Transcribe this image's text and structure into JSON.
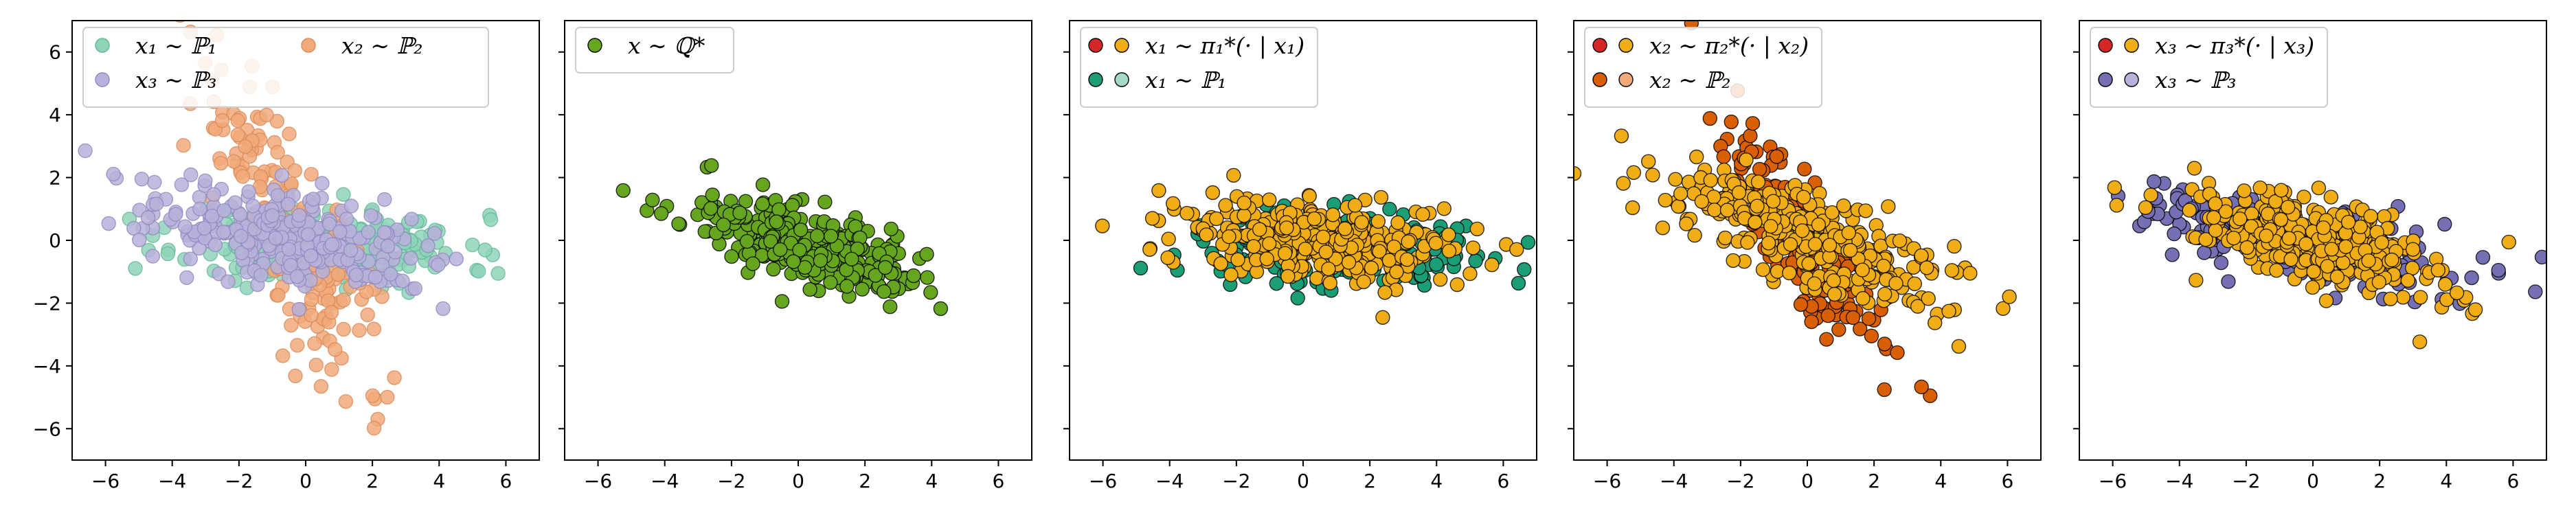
{
  "chart_data": [
    {
      "type": "scatter",
      "xlim": [
        -7,
        7
      ],
      "ylim": [
        -7,
        7
      ],
      "xticks": [
        -6,
        -4,
        -2,
        0,
        2,
        4,
        6
      ],
      "yticks": [
        -6,
        -4,
        -2,
        0,
        2,
        4,
        6
      ],
      "show_yticklabels": true,
      "legend": {
        "placement": "upper-left",
        "columns": 2
      },
      "series": [
        {
          "name": "x₁ ∼ ℙ₁",
          "color": "#8fd3b8",
          "edge": "#5fb898",
          "opacity": 0.85,
          "cluster": {
            "count": 240,
            "center": [
              0.6,
              -0.15
            ],
            "angle": -0.05,
            "spread": [
              2.1,
              0.6
            ],
            "seed": 11
          }
        },
        {
          "name": "x₂ ∼ ℙ₂",
          "color": "#f1a97a",
          "edge": "#d98a58",
          "opacity": 0.85,
          "cluster": {
            "count": 200,
            "center": [
              -0.4,
              0.2
            ],
            "angle": -1.15,
            "spread": [
              2.6,
              0.65
            ],
            "seed": 22
          }
        },
        {
          "name": "x₃ ∼ ℙ₃",
          "color": "#b7b2d9",
          "edge": "#8f88c0",
          "opacity": 0.85,
          "cluster": {
            "count": 280,
            "center": [
              -0.6,
              0.1
            ],
            "angle": -0.22,
            "spread": [
              2.2,
              0.7
            ],
            "seed": 33
          }
        }
      ],
      "legend_order": [
        0,
        2,
        1
      ]
    },
    {
      "type": "scatter",
      "xlim": [
        -7,
        7
      ],
      "ylim": [
        -7,
        7
      ],
      "xticks": [
        -6,
        -4,
        -2,
        0,
        2,
        4,
        6
      ],
      "yticks": [
        -6,
        -4,
        -2,
        0,
        2,
        4,
        6
      ],
      "show_yticklabels": false,
      "legend": {
        "placement": "upper-left",
        "columns": 1
      },
      "series": [
        {
          "name": "x ∼ ℚ*",
          "color": "#66a61e",
          "edge": "#000000",
          "opacity": 1,
          "cluster": {
            "count": 320,
            "center": [
              0.2,
              -0.1
            ],
            "angle": -0.3,
            "spread": [
              1.9,
              0.6
            ],
            "seed": 44
          }
        }
      ]
    },
    {
      "type": "scatter",
      "xlim": [
        -7,
        7
      ],
      "ylim": [
        -7,
        7
      ],
      "xticks": [
        -6,
        -4,
        -2,
        0,
        2,
        4,
        6
      ],
      "yticks": [
        -6,
        -4,
        -2,
        0,
        2,
        4,
        6
      ],
      "show_yticklabels": false,
      "legend": {
        "placement": "upper-left",
        "columns": 1,
        "paired": true
      },
      "series": [
        {
          "name": "x₁ ∼ ℙ₁",
          "color": "#1b9e77",
          "edge": "#000000",
          "opacity": 1,
          "cluster": {
            "count": 200,
            "center": [
              1.0,
              -0.3
            ],
            "angle": -0.05,
            "spread": [
              2.3,
              0.6
            ],
            "seed": 55
          }
        },
        {
          "name": "x₁ ∼ π₁*(· | x₁)",
          "color": "#f0ad16",
          "edge": "#000000",
          "opacity": 1,
          "cluster": {
            "count": 320,
            "center": [
              0.3,
              -0.1
            ],
            "angle": -0.12,
            "spread": [
              2.0,
              0.65
            ],
            "seed": 66
          }
        }
      ],
      "legend_entries": [
        {
          "marker_a": "#d62728",
          "marker_b": "#f0ad16",
          "text": "x₁ ∼ π₁*(· | x₁)"
        },
        {
          "marker_a": "#1b9e77",
          "marker_b": "#a3d9c6",
          "text": "x₁ ∼ ℙ₁"
        }
      ]
    },
    {
      "type": "scatter",
      "xlim": [
        -7,
        7
      ],
      "ylim": [
        -7,
        7
      ],
      "xticks": [
        -6,
        -4,
        -2,
        0,
        2,
        4,
        6
      ],
      "yticks": [
        -6,
        -4,
        -2,
        0,
        2,
        4,
        6
      ],
      "show_yticklabels": false,
      "legend": {
        "placement": "upper-left",
        "columns": 1,
        "paired": true
      },
      "series": [
        {
          "name": "x₂ ∼ ℙ₂",
          "color": "#d95f02",
          "edge": "#000000",
          "opacity": 1,
          "cluster": {
            "count": 180,
            "center": [
              -0.2,
              0.0
            ],
            "angle": -1.05,
            "spread": [
              2.6,
              0.55
            ],
            "seed": 77
          }
        },
        {
          "name": "x₂ ∼ π₂*(· | x₂)",
          "color": "#f0ad16",
          "edge": "#000000",
          "opacity": 1,
          "cluster": {
            "count": 330,
            "center": [
              0.0,
              0.1
            ],
            "angle": -0.42,
            "spread": [
              2.2,
              0.7
            ],
            "seed": 88
          }
        }
      ],
      "legend_entries": [
        {
          "marker_a": "#d62728",
          "marker_b": "#f0ad16",
          "text": "x₂ ∼ π₂*(· | x₂)"
        },
        {
          "marker_a": "#d95f02",
          "marker_b": "#f1a97a",
          "text": "x₂ ∼ ℙ₂"
        }
      ]
    },
    {
      "type": "scatter",
      "xlim": [
        -7,
        7
      ],
      "ylim": [
        -7,
        7
      ],
      "xticks": [
        -6,
        -4,
        -2,
        0,
        2,
        4,
        6
      ],
      "yticks": [
        -6,
        -4,
        -2,
        0,
        2,
        4,
        6
      ],
      "show_yticklabels": false,
      "legend": {
        "placement": "upper-left",
        "columns": 1,
        "paired": true
      },
      "series": [
        {
          "name": "x₃ ∼ ℙ₃",
          "color": "#7570b3",
          "edge": "#000000",
          "opacity": 1,
          "cluster": {
            "count": 220,
            "center": [
              -0.5,
              0.0
            ],
            "angle": -0.28,
            "spread": [
              2.5,
              0.6
            ],
            "seed": 99
          }
        },
        {
          "name": "x₃ ∼ π₃*(· | x₃)",
          "color": "#f0ad16",
          "edge": "#000000",
          "opacity": 1,
          "cluster": {
            "count": 330,
            "center": [
              0.0,
              -0.05
            ],
            "angle": -0.3,
            "spread": [
              2.1,
              0.62
            ],
            "seed": 111
          }
        }
      ],
      "legend_entries": [
        {
          "marker_a": "#d62728",
          "marker_b": "#f0ad16",
          "text": "x₃ ∼ π₃*(· | x₃)"
        },
        {
          "marker_a": "#7570b3",
          "marker_b": "#b7b2d9",
          "text": "x₃ ∼ ℙ₃"
        }
      ]
    }
  ]
}
